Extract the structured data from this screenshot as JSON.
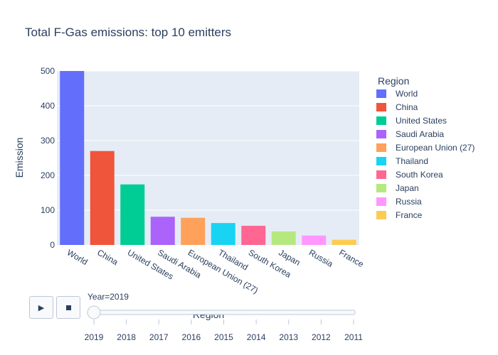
{
  "chart_data": {
    "type": "bar",
    "title": "Total F-Gas emissions: top 10 emitters",
    "xlabel": "Region",
    "ylabel": "Emission",
    "ylim": [
      0,
      500
    ],
    "yticks": [
      0,
      100,
      200,
      300,
      400,
      500
    ],
    "grid": true,
    "legend_title": "Region",
    "legend_position": "right",
    "categories": [
      "World",
      "China",
      "United States",
      "Saudi Arabia",
      "European Union (27)",
      "Thailand",
      "South Korea",
      "Japan",
      "Russia",
      "France"
    ],
    "values": [
      500,
      270,
      174,
      81,
      78,
      63,
      55,
      39,
      27,
      15
    ],
    "colors": [
      "#636efa",
      "#ef553b",
      "#00cc96",
      "#ab63fa",
      "#ffa15a",
      "#19d3f3",
      "#ff6692",
      "#b6e880",
      "#ff97ff",
      "#fecb52"
    ]
  },
  "slider": {
    "label": "Year=2019",
    "steps": [
      "2019",
      "2018",
      "2017",
      "2016",
      "2015",
      "2014",
      "2013",
      "2012",
      "2011"
    ],
    "active_index": 0
  },
  "controls": {
    "play_icon": "play-icon",
    "pause_icon": "pause-icon"
  }
}
